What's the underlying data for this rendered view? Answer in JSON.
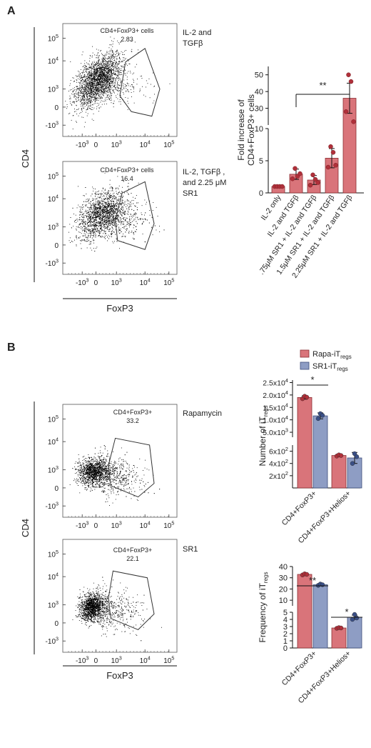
{
  "panels": {
    "A": {
      "label": "A",
      "flow_axes": {
        "y_label": "CD4",
        "x_label": "FoxP3"
      },
      "flow_plots": [
        {
          "gate_title": "CD4+FoxP3+ cells",
          "gate_value": "2.83",
          "condition": [
            "IL-2 and",
            "TGFβ"
          ]
        },
        {
          "gate_title": "CD4+FoxP3+ cells",
          "gate_value": "16.4",
          "condition": [
            "IL-2, TGFβ ,",
            "and 2.25 μM",
            "SR1"
          ]
        }
      ]
    },
    "B": {
      "label": "B",
      "flow_axes": {
        "y_label": "CD4",
        "x_label": "FoxP3"
      },
      "flow_plots": [
        {
          "gate_title": "CD4+FoxP3+",
          "gate_value": "33.2",
          "condition": [
            "Rapamycin"
          ]
        },
        {
          "gate_title": "CD4+FoxP3+",
          "gate_value": "22.1",
          "condition": [
            "SR1"
          ]
        }
      ],
      "legend": [
        {
          "name": "Rapa-iT",
          "sub": "regs",
          "color": "#d9747a"
        },
        {
          "name": "SR1-iT",
          "sub": "regs",
          "color": "#8e9dc4"
        }
      ]
    }
  },
  "flow_tick_labels": {
    "y": [
      {
        "b": "10",
        "e": "5"
      },
      {
        "b": "10",
        "e": "4"
      },
      {
        "b": "10",
        "e": "3"
      },
      {
        "b": "0",
        "e": ""
      },
      {
        "b": "-10",
        "e": "3"
      }
    ],
    "x": [
      {
        "b": "-10",
        "e": "3"
      },
      {
        "b": "0",
        "e": ""
      },
      {
        "b": "10",
        "e": "3"
      },
      {
        "b": "10",
        "e": "4"
      },
      {
        "b": "10",
        "e": "5"
      }
    ]
  },
  "chart_data": [
    {
      "type": "bar",
      "ylabel": [
        "Fold increase of",
        "CD4+FoxP3+ cells"
      ],
      "categories": [
        "IL-2 only",
        "IL-2 and TGFβ",
        ".75μM SR1 + IL-2 and TGFβ",
        "1.5μM SR1 + IL-2 and TGFβ",
        "2.25μM SR1 + IL-2 and TGFβ"
      ],
      "values": [
        1.0,
        2.9,
        2.0,
        5.4,
        36
      ],
      "errors": [
        0.15,
        0.8,
        0.7,
        1.5,
        9
      ],
      "points": [
        [
          1,
          1,
          1,
          1
        ],
        [
          2.2,
          3.8,
          2.6,
          3.0
        ],
        [
          1.2,
          2.8,
          2.1,
          1.6
        ],
        [
          4.0,
          7.2,
          6.3,
          4.3
        ],
        [
          28,
          50,
          46,
          22
        ]
      ],
      "color": "#d9747a",
      "yticks": [
        0,
        5,
        10,
        30,
        40,
        50
      ],
      "segments": [
        {
          "range": [
            0,
            10
          ]
        },
        {
          "range": [
            20,
            55
          ]
        }
      ],
      "annotations": [
        {
          "text": "**",
          "from": 1,
          "to": 4
        }
      ]
    },
    {
      "type": "bar",
      "ylabel": [
        "Number of iT",
        "regs"
      ],
      "categories": [
        "CD4+FoxP3+",
        "CD4+FoxP3+Helios+"
      ],
      "series": [
        {
          "name": "Rapa-iT regs",
          "values": [
            19000,
            530
          ],
          "errors": [
            700,
            20
          ],
          "points": [
            [
              18500,
              19500,
              19100
            ],
            [
              520,
              540,
              530
            ]
          ]
        },
        {
          "name": "SR1-iT regs",
          "values": [
            11600,
            490
          ],
          "errors": [
            1200,
            90
          ],
          "points": [
            [
              10500,
              12500,
              11800
            ],
            [
              400,
              560,
              510
            ]
          ]
        }
      ],
      "yticks": [
        {
          "v": 200,
          "b": "2x10",
          "e": "2"
        },
        {
          "v": 400,
          "b": "4x10",
          "e": "2"
        },
        {
          "v": 600,
          "b": "6x10",
          "e": "2"
        },
        {
          "v": 5000,
          "b": "5.0x10",
          "e": "3"
        },
        {
          "v": 10000,
          "b": "1.0x10",
          "e": "4"
        },
        {
          "v": 15000,
          "b": "1.5x10",
          "e": "4"
        },
        {
          "v": 20000,
          "b": "2.0x10",
          "e": "4"
        },
        {
          "v": 25000,
          "b": "2.5x10",
          "e": "4"
        }
      ],
      "segments": [
        {
          "range": [
            0,
            700
          ]
        },
        {
          "range": [
            3000,
            26000
          ]
        }
      ],
      "annotations": [
        {
          "text": "*",
          "group": 0
        }
      ]
    },
    {
      "type": "bar",
      "ylabel": [
        "Frequency of iT",
        "regs"
      ],
      "categories": [
        "CD4+FoxP3+",
        "CD4+FoxP3+Helios+"
      ],
      "series": [
        {
          "name": "Rapa-iT regs",
          "values": [
            33,
            2.8
          ],
          "errors": [
            0.6,
            0.05
          ],
          "points": [
            [
              32.5,
              33.5,
              33
            ],
            [
              2.75,
              2.85,
              2.8
            ]
          ]
        },
        {
          "name": "SR1-iT regs",
          "values": [
            23.8,
            4.3
          ],
          "errors": [
            0.6,
            0.3
          ],
          "points": [
            [
              23.2,
              24.4,
              23.8
            ],
            [
              4.0,
              4.7,
              4.2
            ]
          ]
        }
      ],
      "yticks": [
        0,
        1,
        2,
        3,
        4,
        5,
        10,
        20,
        30,
        40
      ],
      "segments": [
        {
          "range": [
            0,
            5
          ]
        },
        {
          "range": [
            5,
            40
          ]
        }
      ],
      "annotations": [
        {
          "text": "**",
          "group": 0
        },
        {
          "text": "*",
          "group": 1
        }
      ]
    }
  ]
}
